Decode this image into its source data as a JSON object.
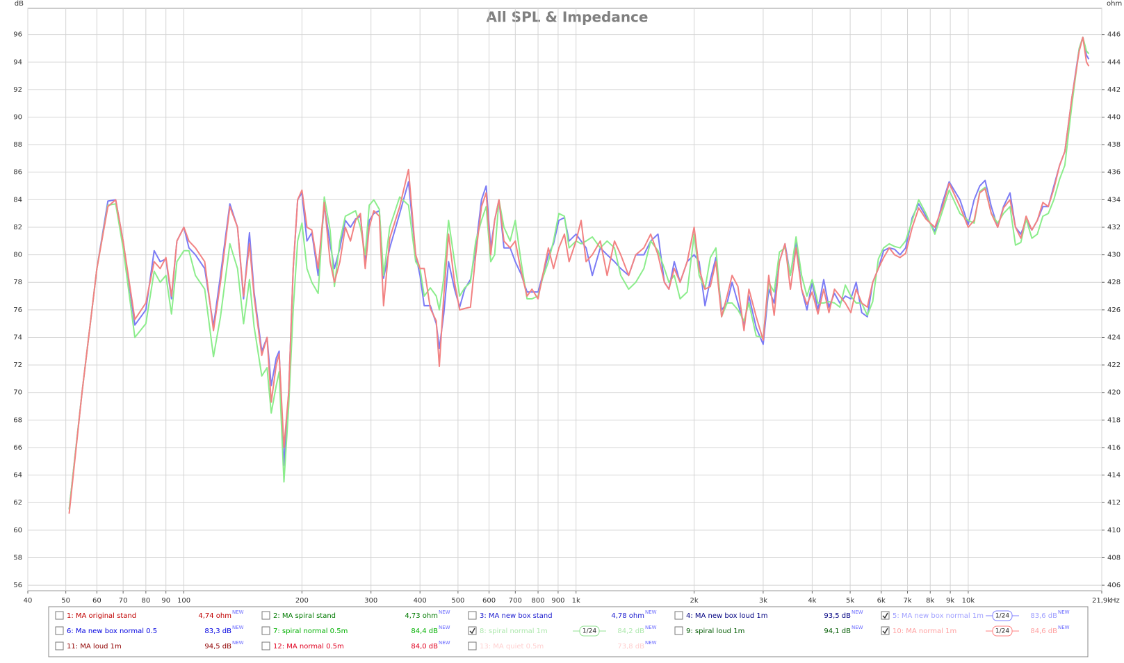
{
  "chart_data": {
    "type": "line",
    "title": "All SPL & Impedance",
    "y_label": "dB",
    "y2_label": "ohm",
    "x_label": "Hz",
    "log_x": true,
    "grid": true,
    "xlim": [
      40,
      21900
    ],
    "xticks": [
      40,
      50,
      60,
      70,
      80,
      90,
      100,
      200,
      300,
      400,
      500,
      600,
      700,
      800,
      900,
      {
        "value": 1000,
        "label": "1k"
      },
      {
        "value": 2000,
        "label": "2k"
      },
      {
        "value": 3000,
        "label": "3k"
      },
      {
        "value": 4000,
        "label": "4k"
      },
      {
        "value": 5000,
        "label": "5k"
      },
      {
        "value": 6000,
        "label": "6k"
      },
      {
        "value": 7000,
        "label": "7k"
      },
      {
        "value": 8000,
        "label": "8k"
      },
      {
        "value": 9000,
        "label": "9k"
      },
      {
        "value": 10000,
        "label": "10k"
      },
      {
        "value": 21900,
        "label": "21,9k"
      }
    ],
    "ylim": [
      55.6,
      97.9
    ],
    "yticks": [
      56,
      58,
      60,
      62,
      64,
      66,
      68,
      70,
      72,
      74,
      76,
      78,
      80,
      82,
      84,
      86,
      88,
      90,
      92,
      94,
      96
    ],
    "y2lim": [
      405.6,
      447.9
    ],
    "y2ticks": [
      406,
      408,
      410,
      412,
      414,
      416,
      418,
      420,
      422,
      424,
      426,
      428,
      430,
      432,
      434,
      436,
      438,
      440,
      442,
      444,
      446
    ],
    "x": [
      51,
      55,
      60,
      64,
      67,
      70,
      75,
      80,
      84,
      87,
      90,
      93,
      96,
      100,
      103,
      107,
      113,
      119,
      124,
      131,
      137,
      142,
      147,
      151,
      158,
      163,
      167,
      172,
      175,
      180,
      185,
      190,
      195,
      200,
      206,
      212,
      220,
      228,
      236,
      242,
      250,
      258,
      266,
      274,
      282,
      290,
      297,
      305,
      315,
      323,
      335,
      355,
      374,
      390,
      400,
      410,
      425,
      440,
      448,
      460,
      473,
      490,
      505,
      520,
      538,
      555,
      574,
      590,
      606,
      620,
      636,
      655,
      679,
      700,
      724,
      750,
      772,
      800,
      822,
      850,
      876,
      904,
      934,
      960,
      1000,
      1030,
      1061,
      1100,
      1153,
      1200,
      1253,
      1300,
      1362,
      1420,
      1489,
      1550,
      1618,
      1680,
      1725,
      1780,
      1842,
      1920,
      2000,
      2060,
      2132,
      2200,
      2273,
      2350,
      2427,
      2500,
      2587,
      2680,
      2759,
      2880,
      3000,
      3100,
      3200,
      3300,
      3410,
      3520,
      3638,
      3760,
      3880,
      4000,
      4138,
      4280,
      4413,
      4560,
      4705,
      4860,
      5018,
      5180,
      5352,
      5530,
      5707,
      5900,
      6086,
      6290,
      6490,
      6700,
      6922,
      7200,
      7478,
      7800,
      8220,
      8600,
      8940,
      9524,
      10000,
      10350,
      10700,
      11040,
      11450,
      11890,
      12300,
      12780,
      13200,
      13620,
      14050,
      14530,
      15000,
      15500,
      16000,
      16530,
      17100,
      17630,
      18400,
      19190,
      19600,
      20020,
      20300
    ],
    "series": [
      {
        "name": "5: MA new box normal 1m",
        "color": "#8080ff",
        "line_color": "#7b7bf5",
        "reading": "83,6 dB",
        "checked": true,
        "smoothing": "1/24",
        "values": [
          61.5,
          70,
          79,
          83.9,
          84,
          81,
          74.9,
          76,
          80.3,
          79.5,
          79.7,
          76.8,
          81,
          82,
          80.5,
          80,
          79,
          74.8,
          78.5,
          83.7,
          82,
          76.8,
          81.6,
          77.3,
          73,
          74,
          70.5,
          72.5,
          73,
          64.7,
          70,
          79,
          84,
          84.5,
          81,
          81.6,
          78.5,
          83.6,
          80.8,
          79,
          80.5,
          82.5,
          82,
          82.6,
          82.8,
          79.5,
          82.5,
          83,
          83.2,
          78.3,
          80.5,
          83,
          85.3,
          80,
          78.5,
          76.3,
          76.3,
          75,
          73.2,
          75.7,
          79.5,
          77.5,
          76.2,
          77.5,
          78.2,
          80.5,
          84,
          85,
          80.5,
          82.5,
          84,
          80.5,
          80.5,
          79.5,
          78.6,
          77.3,
          77.3,
          77.3,
          78.5,
          80,
          80.8,
          82.5,
          82.7,
          81,
          81.5,
          81,
          80.5,
          78.5,
          80.5,
          80,
          79.5,
          79,
          78.5,
          80,
          80,
          81,
          81.5,
          78,
          77.5,
          79.5,
          78,
          79.5,
          80,
          79.5,
          76.3,
          78.2,
          79.8,
          76,
          76.5,
          78,
          76.5,
          74.9,
          77,
          74.7,
          73.5,
          77.5,
          76.5,
          79.5,
          80.8,
          78.5,
          81,
          77.5,
          76,
          78,
          76,
          78.2,
          76.2,
          77.2,
          76.5,
          77,
          76.8,
          78,
          75.8,
          75.5,
          78,
          79,
          80.3,
          80.5,
          80.4,
          80,
          80.5,
          82.7,
          83.7,
          82.8,
          81.7,
          83.8,
          85.3,
          84,
          82.2,
          84,
          85,
          85.4,
          83.5,
          82,
          83.5,
          84.5,
          82,
          81.5,
          82.5,
          81.8,
          82.5,
          83.5,
          83.5,
          85,
          86.5,
          87.5,
          91.5,
          95,
          95.8,
          94.5,
          94.2
        ]
      },
      {
        "name": "8: spiral normal 1m",
        "color": "#90e090",
        "line_color": "#8ced8c",
        "reading": "84,2 dB",
        "checked": true,
        "smoothing": "1/24",
        "values": [
          61.5,
          70,
          79,
          83.6,
          83.7,
          80.5,
          74,
          75,
          78.8,
          78,
          78.5,
          75.7,
          79.5,
          80.3,
          80.3,
          78.5,
          77.5,
          72.6,
          75.5,
          80.8,
          79,
          75,
          78.2,
          74.8,
          71.2,
          71.8,
          68.5,
          70.5,
          71.5,
          63.5,
          69,
          76,
          81,
          82.3,
          79,
          78,
          77.2,
          84.2,
          81.8,
          77.7,
          81,
          82.8,
          83,
          83.2,
          82,
          80,
          83.6,
          84,
          83.3,
          78.5,
          82,
          84.2,
          83.6,
          79.5,
          79,
          77,
          77.6,
          77,
          76,
          78.3,
          82.5,
          79.5,
          77,
          77.6,
          78,
          81,
          82.5,
          83.5,
          79.5,
          80,
          84,
          82,
          81,
          82.5,
          79.5,
          76.8,
          76.8,
          77,
          78.3,
          79.5,
          81,
          83,
          82.8,
          80.5,
          81,
          80.8,
          81,
          81.3,
          80.5,
          81,
          80.5,
          78.5,
          77.5,
          78,
          79,
          81,
          80.3,
          79,
          78,
          78.5,
          76.8,
          77.3,
          81.5,
          78.5,
          77.5,
          79.8,
          80.5,
          75.5,
          76.5,
          76.5,
          76,
          75.2,
          76.5,
          74.1,
          74,
          78,
          77.3,
          80.2,
          80.5,
          78.5,
          81.3,
          78.5,
          77,
          78.2,
          76.5,
          76.5,
          76.6,
          76.5,
          76.2,
          77.8,
          77,
          76.5,
          76.5,
          75.6,
          76.6,
          79.7,
          80.5,
          80.8,
          80.6,
          80.5,
          81,
          82.5,
          84,
          83,
          81.5,
          83.2,
          84.7,
          83,
          82.5,
          82.3,
          84.6,
          84.9,
          83,
          82.3,
          83,
          83.5,
          80.7,
          80.9,
          82.6,
          81.2,
          81.5,
          82.8,
          83,
          84,
          85.5,
          86.5,
          91,
          95,
          95.8,
          94.8,
          94.6
        ]
      },
      {
        "name": "10: MA normal 1m",
        "color": "#ff8080",
        "line_color": "#f28282",
        "reading": "84,6 dB",
        "checked": true,
        "smoothing": "1/24",
        "values": [
          61.2,
          70,
          79,
          83.5,
          84,
          81,
          75.3,
          76.5,
          79.5,
          79,
          79.8,
          77,
          81,
          82,
          81,
          80.5,
          79.5,
          74.5,
          78,
          83.5,
          82,
          77,
          80.8,
          77,
          72.7,
          74,
          69.3,
          72,
          72.8,
          66,
          70,
          79,
          84,
          84.7,
          82,
          81.8,
          79,
          83.8,
          79.5,
          78,
          79.5,
          82,
          81,
          82.5,
          83,
          79,
          82,
          83.2,
          82.8,
          76.3,
          81.2,
          83.5,
          86.2,
          80,
          79,
          79,
          76.1,
          75.2,
          71.9,
          77,
          81.5,
          78,
          76,
          76.1,
          76.2,
          80,
          83.5,
          84.5,
          80,
          82.5,
          84,
          81,
          80.5,
          81,
          78.8,
          77,
          77.5,
          76.8,
          78.5,
          80.5,
          79,
          80.5,
          81.5,
          79.5,
          81,
          82.5,
          79.5,
          80,
          81,
          78.5,
          81,
          80,
          78.5,
          80,
          80.5,
          81.5,
          80,
          78,
          77.5,
          79,
          78,
          79.5,
          82,
          79,
          77.5,
          77.7,
          79.5,
          75.5,
          77,
          78.5,
          77.7,
          74.5,
          77.5,
          75.5,
          73.8,
          78.5,
          75.6,
          79.5,
          80.8,
          77.5,
          80.5,
          77.5,
          76.4,
          77.3,
          75.7,
          77.5,
          75.8,
          77.5,
          77,
          76.5,
          75.8,
          77.5,
          76.5,
          76.2,
          78,
          79,
          79.8,
          80.5,
          80,
          79.8,
          80.1,
          82,
          83.4,
          82.6,
          82,
          83.5,
          85.2,
          83.5,
          82,
          82.5,
          84.5,
          84.8,
          83,
          82,
          83.4,
          84,
          82,
          81.2,
          82.8,
          81.8,
          82.5,
          83.8,
          83.5,
          84.8,
          86.5,
          87.5,
          91.5,
          94.8,
          95.8,
          94,
          93.7
        ]
      }
    ],
    "reading_badge": "NEW",
    "other_traces": [
      {
        "label": "1: MA original stand",
        "color": "#c00000",
        "reading": "4,74 ohm",
        "checked": false
      },
      {
        "label": "2: MA spiral stand",
        "color": "#007a00",
        "reading": "4,73 ohm",
        "checked": false
      },
      {
        "label": "3: MA new box stand",
        "color": "#2020d0",
        "reading": "4,78 ohm",
        "checked": false
      },
      {
        "label": "4: MA new box loud 1m",
        "color": "#000080",
        "reading": "93,5 dB",
        "checked": false
      },
      {
        "label": "6: Ma new box normal 0.5",
        "color": "#0000e0",
        "reading": "83,3 dB",
        "checked": false
      },
      {
        "label": "7: spiral normal 0.5m",
        "color": "#00b000",
        "reading": "84,4 dB",
        "checked": false
      },
      {
        "label": "9: spiral loud 1m",
        "color": "#005a00",
        "reading": "94,1 dB",
        "checked": false
      },
      {
        "label": "11: MA loud 1m",
        "color": "#900000",
        "reading": "94,5 dB",
        "checked": false
      },
      {
        "label": "12: MA normal 0.5m",
        "color": "#e00020",
        "reading": "84,0 dB",
        "checked": false
      },
      {
        "label": "13: MA quiet 0.5m",
        "color": "#ffc0c0",
        "reading": "73,8 dB",
        "checked": false
      }
    ]
  }
}
